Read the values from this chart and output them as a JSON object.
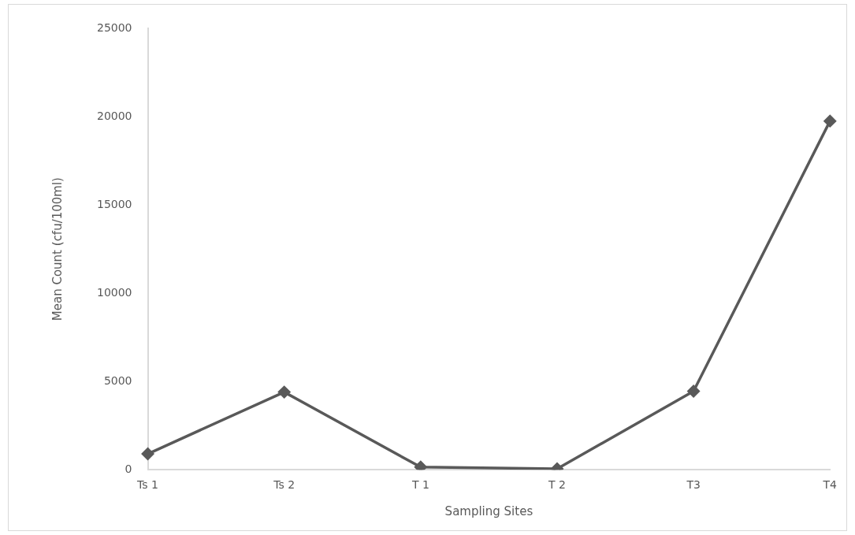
{
  "chart_data": {
    "type": "line",
    "xlabel": "Sampling Sites",
    "ylabel": "Mean Count (cfu/100ml)",
    "categories": [
      "Ts 1",
      "Ts 2",
      "T 1",
      "T 2",
      "T3",
      "T4"
    ],
    "series": [
      {
        "color": "#595959",
        "values": [
          900,
          4400,
          150,
          50,
          4450,
          19750
        ]
      }
    ],
    "ylim": [
      0,
      25000
    ],
    "yticks": [
      0,
      5000,
      10000,
      15000,
      20000,
      25000
    ],
    "grid": false,
    "legend": false,
    "marker": "diamond",
    "line_style": "solid"
  }
}
